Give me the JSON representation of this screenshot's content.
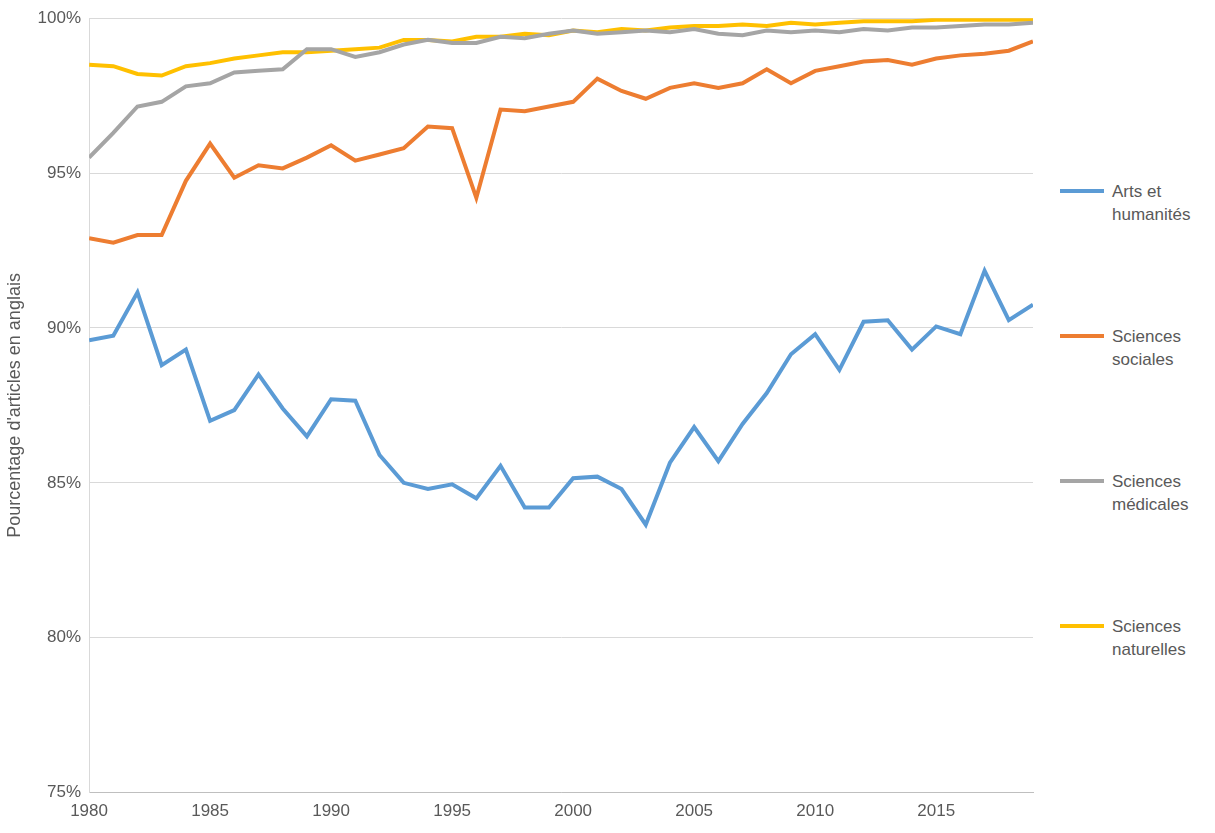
{
  "chart_data": {
    "type": "line",
    "y_label": "Pourcentage d'articles en anglais",
    "x": [
      1980,
      1981,
      1982,
      1983,
      1984,
      1985,
      1986,
      1987,
      1988,
      1989,
      1990,
      1991,
      1992,
      1993,
      1994,
      1995,
      1996,
      1997,
      1998,
      1999,
      2000,
      2001,
      2002,
      2003,
      2004,
      2005,
      2006,
      2007,
      2008,
      2009,
      2010,
      2011,
      2012,
      2013,
      2014,
      2015,
      2016,
      2017,
      2018,
      2019
    ],
    "series": [
      {
        "name": "Arts et humanités",
        "color": "#5B9BD5",
        "values": [
          89.6,
          89.75,
          91.15,
          88.8,
          89.3,
          87.0,
          87.35,
          88.5,
          87.4,
          86.5,
          87.7,
          87.65,
          85.9,
          85.0,
          84.8,
          84.95,
          84.5,
          85.55,
          84.2,
          84.2,
          85.15,
          85.2,
          84.8,
          83.65,
          85.65,
          86.8,
          85.7,
          86.9,
          87.9,
          89.15,
          89.8,
          88.65,
          90.2,
          90.25,
          89.3,
          90.05,
          89.8,
          91.85,
          90.25,
          90.75
        ]
      },
      {
        "name": "Sciences sociales",
        "color": "#ED7D31",
        "values": [
          92.9,
          92.75,
          93.0,
          93.0,
          94.75,
          95.95,
          94.85,
          95.25,
          95.15,
          95.5,
          95.9,
          95.4,
          95.6,
          95.8,
          96.5,
          96.45,
          94.2,
          97.05,
          97.0,
          97.15,
          97.3,
          98.05,
          97.65,
          97.4,
          97.75,
          97.9,
          97.75,
          97.9,
          98.35,
          97.9,
          98.3,
          98.45,
          98.6,
          98.65,
          98.5,
          98.7,
          98.8,
          98.85,
          98.95,
          99.25
        ]
      },
      {
        "name": "Sciences médicales",
        "color": "#A5A5A5",
        "values": [
          95.5,
          96.3,
          97.15,
          97.3,
          97.8,
          97.9,
          98.25,
          98.3,
          98.35,
          99.0,
          99.0,
          98.75,
          98.9,
          99.15,
          99.3,
          99.2,
          99.2,
          99.4,
          99.35,
          99.5,
          99.6,
          99.5,
          99.55,
          99.6,
          99.55,
          99.65,
          99.5,
          99.45,
          99.6,
          99.55,
          99.6,
          99.55,
          99.65,
          99.6,
          99.7,
          99.7,
          99.75,
          99.8,
          99.8,
          99.85
        ]
      },
      {
        "name": "Sciences naturelles",
        "color": "#FFC000",
        "values": [
          98.5,
          98.45,
          98.2,
          98.15,
          98.45,
          98.55,
          98.7,
          98.8,
          98.9,
          98.9,
          98.95,
          99.0,
          99.05,
          99.3,
          99.3,
          99.25,
          99.4,
          99.4,
          99.5,
          99.45,
          99.6,
          99.55,
          99.65,
          99.6,
          99.7,
          99.75,
          99.75,
          99.8,
          99.75,
          99.85,
          99.8,
          99.85,
          99.9,
          99.9,
          99.9,
          99.95,
          99.95,
          99.95,
          99.95,
          99.95
        ]
      }
    ],
    "xlim": [
      1980,
      2019
    ],
    "xticks": [
      1980,
      1985,
      1990,
      1995,
      2000,
      2005,
      2010,
      2015
    ],
    "ylim": [
      75,
      100
    ],
    "yticks": [
      {
        "value": 75,
        "label": "75%"
      },
      {
        "value": 80,
        "label": "80%"
      },
      {
        "value": 85,
        "label": "85%"
      },
      {
        "value": 90,
        "label": "90%"
      },
      {
        "value": 95,
        "label": "95%"
      },
      {
        "value": 100,
        "label": "100%"
      }
    ],
    "grid": true,
    "legend": "right"
  }
}
